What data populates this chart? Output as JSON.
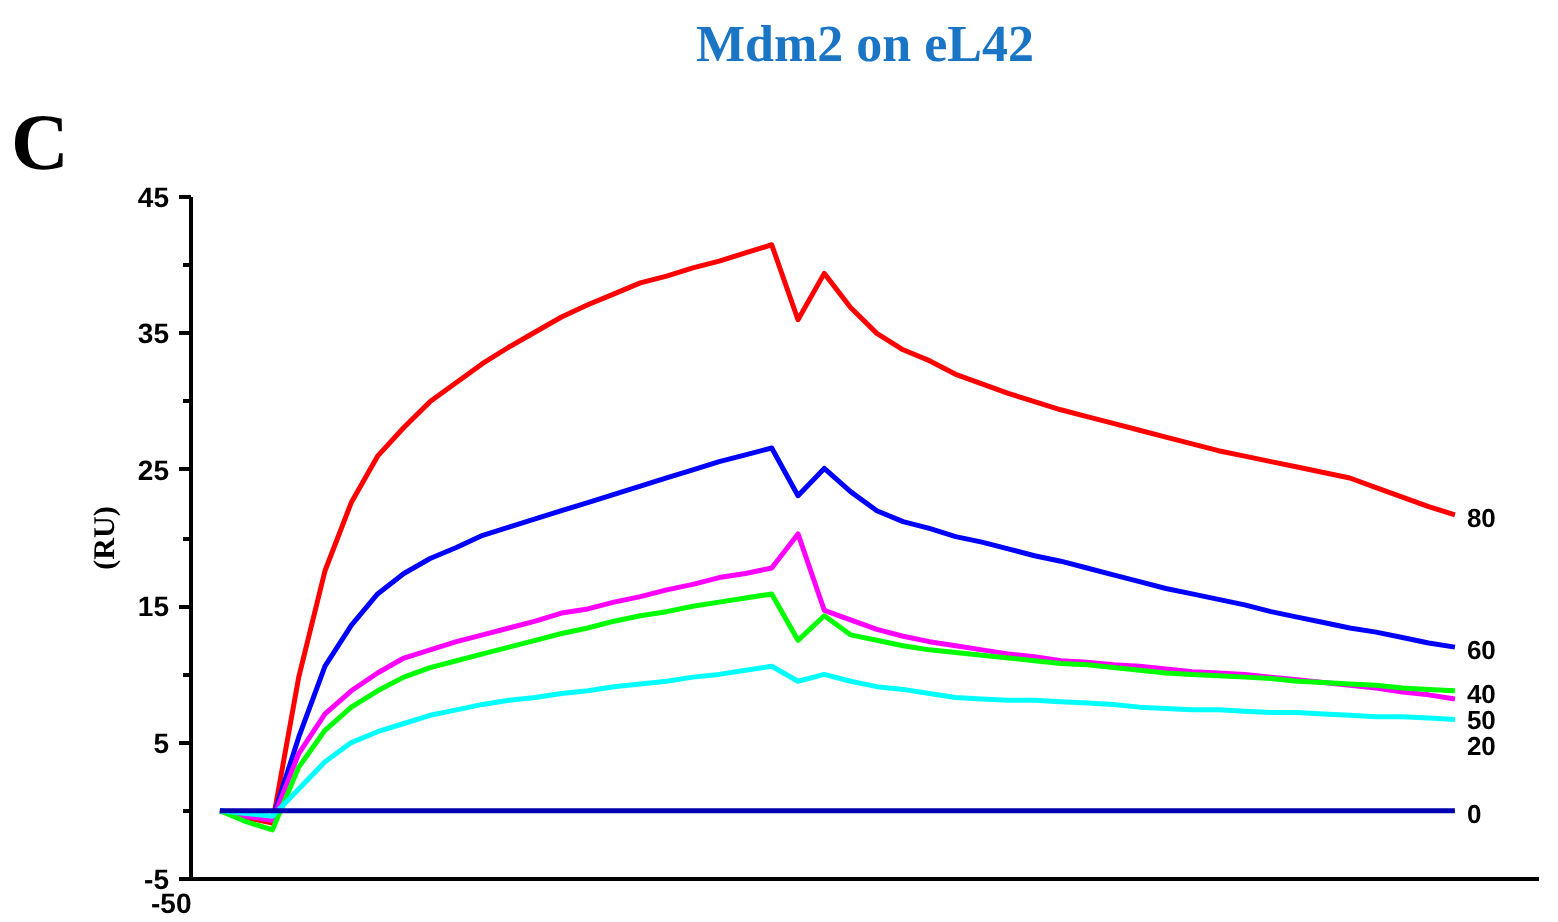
{
  "chart_data": {
    "type": "line",
    "title": "Mdm2 on eL42",
    "ylabel": "(RU)",
    "annotations": [
      "C",
      "-50"
    ],
    "categories": [
      null,
      null,
      null,
      null,
      null,
      null,
      null,
      null,
      null,
      null,
      null,
      null,
      null,
      null,
      null,
      null,
      null,
      null,
      null,
      null,
      null,
      null,
      null,
      null,
      null,
      null,
      null,
      null,
      null,
      null,
      null,
      null,
      null,
      null,
      null,
      null,
      null,
      null,
      null,
      null,
      null,
      null,
      null,
      null,
      null,
      null,
      null,
      null
    ],
    "ylim": [
      -5,
      45
    ],
    "yticks": [
      -5,
      5,
      15,
      25,
      35,
      45
    ],
    "grid": false,
    "legend": false,
    "marker": "none",
    "line_style": "solid",
    "series": [
      {
        "name": "80",
        "color": "#ff0000",
        "values": [
          0,
          -0.5,
          -0.9,
          9.8,
          17.6,
          22.6,
          26,
          28.1,
          30,
          31.4,
          32.8,
          34,
          35.1,
          36.2,
          37.1,
          37.9,
          38.7,
          39.2,
          39.8,
          40.3,
          40.9,
          41.5,
          36,
          39.4,
          36.9,
          35,
          33.8,
          33,
          32,
          31.3,
          30.6,
          30,
          29.4,
          28.9,
          28.4,
          27.9,
          27.4,
          26.9,
          26.4,
          26,
          25.6,
          25.2,
          24.8,
          24.4,
          23.7,
          23,
          22.3,
          21.7
        ]
      },
      {
        "name": "60",
        "color": "#0000ff",
        "values": [
          0,
          -0.3,
          -0.6,
          5.4,
          10.6,
          13.6,
          15.9,
          17.4,
          18.5,
          19.3,
          20.2,
          20.8,
          21.4,
          22,
          22.6,
          23.2,
          23.8,
          24.4,
          25,
          25.6,
          26.1,
          26.6,
          23.1,
          25.1,
          23.4,
          22,
          21.2,
          20.7,
          20.1,
          19.7,
          19.2,
          18.7,
          18.3,
          17.8,
          17.3,
          16.8,
          16.3,
          15.9,
          15.5,
          15.1,
          14.6,
          14.2,
          13.8,
          13.4,
          13.1,
          12.7,
          12.3,
          12
        ]
      },
      {
        "name": "50",
        "color": "#ff00ff",
        "values": [
          0,
          -0.4,
          -0.7,
          4.2,
          7.1,
          8.8,
          10.1,
          11.2,
          11.8,
          12.4,
          12.9,
          13.4,
          13.9,
          14.5,
          14.8,
          15.3,
          15.7,
          16.2,
          16.6,
          17.1,
          17.4,
          17.8,
          20.3,
          14.7,
          14,
          13.3,
          12.8,
          12.4,
          12.1,
          11.8,
          11.5,
          11.3,
          11,
          10.9,
          10.7,
          10.6,
          10.4,
          10.2,
          10.1,
          10,
          9.8,
          9.6,
          9.4,
          9.2,
          9,
          8.7,
          8.5,
          8.2
        ]
      },
      {
        "name": "40",
        "color": "#00ff00",
        "values": [
          0,
          -0.8,
          -1.4,
          3.2,
          5.9,
          7.6,
          8.8,
          9.8,
          10.5,
          11,
          11.5,
          12,
          12.5,
          13,
          13.4,
          13.9,
          14.3,
          14.6,
          15,
          15.3,
          15.6,
          15.9,
          12.5,
          14.3,
          12.9,
          12.5,
          12.1,
          11.8,
          11.6,
          11.4,
          11.2,
          11,
          10.8,
          10.7,
          10.5,
          10.3,
          10.1,
          10,
          9.9,
          9.8,
          9.7,
          9.5,
          9.4,
          9.3,
          9.2,
          9,
          8.9,
          8.8
        ]
      },
      {
        "name": "20",
        "color": "#00ffff",
        "values": [
          0,
          -0.2,
          -0.4,
          1.6,
          3.6,
          5,
          5.8,
          6.4,
          7,
          7.4,
          7.8,
          8.1,
          8.3,
          8.6,
          8.8,
          9.1,
          9.3,
          9.5,
          9.8,
          10,
          10.3,
          10.6,
          9.5,
          10,
          9.5,
          9.1,
          8.9,
          8.6,
          8.3,
          8.2,
          8.1,
          8.1,
          8,
          7.9,
          7.8,
          7.6,
          7.5,
          7.4,
          7.4,
          7.3,
          7.2,
          7.2,
          7.1,
          7,
          6.9,
          6.9,
          6.8,
          6.7
        ]
      },
      {
        "name": "0",
        "color": "#0000b0",
        "values": [
          0,
          0,
          0,
          0,
          0,
          0,
          0,
          0,
          0,
          0,
          0,
          0,
          0,
          0,
          0,
          0,
          0,
          0,
          0,
          0,
          0,
          0,
          0,
          0,
          0,
          0,
          0,
          0,
          0,
          0,
          0,
          0,
          0,
          0,
          0,
          0,
          0,
          0,
          0,
          0,
          0,
          0,
          0,
          0,
          0,
          0,
          0,
          0
        ]
      }
    ]
  }
}
